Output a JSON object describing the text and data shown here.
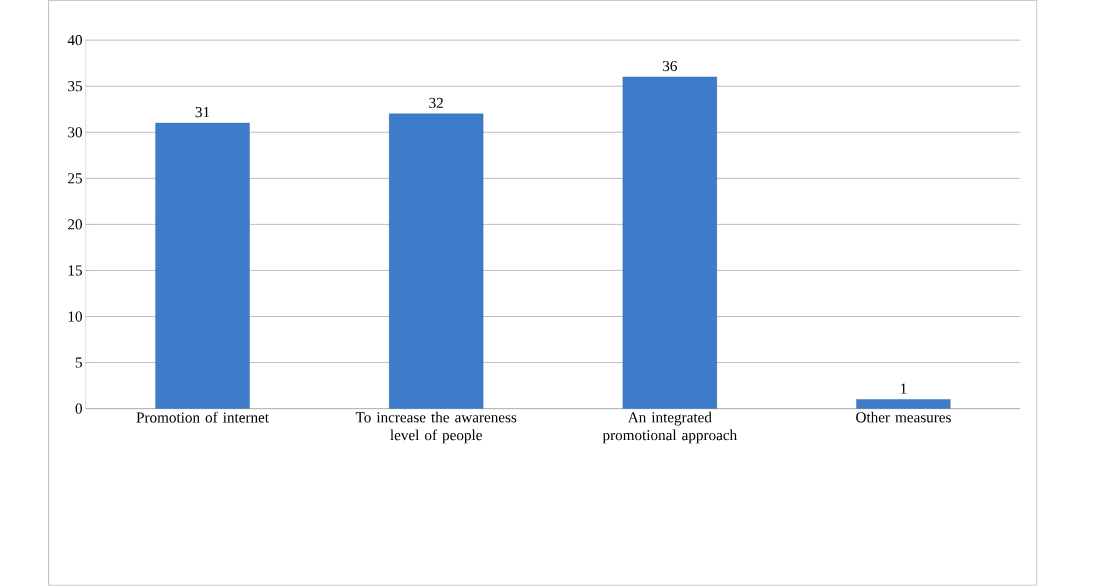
{
  "chart_data": {
    "type": "bar",
    "categories": [
      "Promotion of internet",
      "To increase the awareness level of people",
      "An integrated promotional approach",
      "Other measures"
    ],
    "values": [
      31,
      32,
      36,
      1
    ],
    "color": "#3d7cc9",
    "ylim": [
      0,
      40
    ],
    "yticks": [
      0,
      5,
      10,
      15,
      20,
      25,
      30,
      35,
      40
    ],
    "grid": "y",
    "data_labels": true
  }
}
